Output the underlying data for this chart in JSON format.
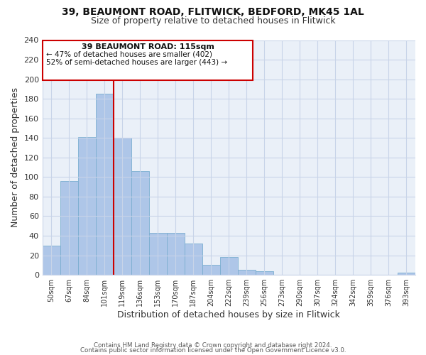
{
  "title_line1": "39, BEAUMONT ROAD, FLITWICK, BEDFORD, MK45 1AL",
  "title_line2": "Size of property relative to detached houses in Flitwick",
  "xlabel": "Distribution of detached houses by size in Flitwick",
  "ylabel": "Number of detached properties",
  "bar_labels": [
    "50sqm",
    "67sqm",
    "84sqm",
    "101sqm",
    "119sqm",
    "136sqm",
    "153sqm",
    "170sqm",
    "187sqm",
    "204sqm",
    "222sqm",
    "239sqm",
    "256sqm",
    "273sqm",
    "290sqm",
    "307sqm",
    "324sqm",
    "342sqm",
    "359sqm",
    "376sqm",
    "393sqm"
  ],
  "bar_heights": [
    30,
    96,
    141,
    185,
    140,
    106,
    43,
    43,
    32,
    10,
    18,
    5,
    4,
    0,
    0,
    0,
    0,
    0,
    0,
    0,
    2
  ],
  "bar_color": "#aec6e8",
  "bar_edge_color": "#7aaed0",
  "vline_x": 3.5,
  "vline_color": "#cc0000",
  "ylim": [
    0,
    240
  ],
  "yticks": [
    0,
    20,
    40,
    60,
    80,
    100,
    120,
    140,
    160,
    180,
    200,
    220,
    240
  ],
  "annotation_title": "39 BEAUMONT ROAD: 115sqm",
  "annotation_line2": "← 47% of detached houses are smaller (402)",
  "annotation_line3": "52% of semi-detached houses are larger (443) →",
  "footer_line1": "Contains HM Land Registry data © Crown copyright and database right 2024.",
  "footer_line2": "Contains public sector information licensed under the Open Government Licence v3.0.",
  "background_color": "#ffffff",
  "ax_facecolor": "#eaf0f8",
  "grid_color": "#c8d4e8",
  "title_fontsize": 10,
  "subtitle_fontsize": 9
}
